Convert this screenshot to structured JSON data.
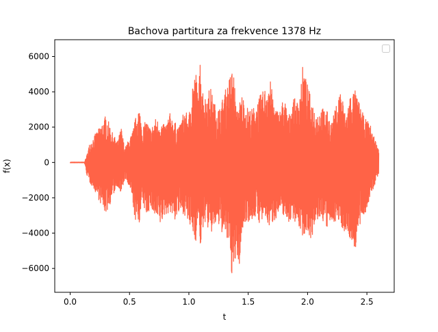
{
  "chart_data": {
    "type": "line",
    "title": "Bachova partitura za frekvence 1378 Hz",
    "xlabel": "t",
    "ylabel": "f(x)",
    "xlim": [
      -0.13,
      2.73
    ],
    "ylim": [
      -7350,
      6950
    ],
    "x_ticks": [
      0.0,
      0.5,
      1.0,
      1.5,
      2.0,
      2.5
    ],
    "x_tick_labels": [
      "0.0",
      "0.5",
      "1.0",
      "1.5",
      "2.0",
      "2.5"
    ],
    "y_ticks": [
      -6000,
      -4000,
      -2000,
      0,
      2000,
      4000,
      6000
    ],
    "y_tick_labels": [
      "−6000",
      "−4000",
      "−2000",
      "0",
      "2000",
      "4000",
      "6000"
    ],
    "grid": false,
    "legend_placement": "top-right",
    "series": [
      {
        "color": "#ff6347",
        "envelope": {
          "t": [
            0.0,
            0.12,
            0.14,
            0.16,
            0.2,
            0.24,
            0.28,
            0.3,
            0.33,
            0.36,
            0.4,
            0.43,
            0.46,
            0.5,
            0.52,
            0.55,
            0.58,
            0.61,
            0.64,
            0.68,
            0.72,
            0.76,
            0.8,
            0.84,
            0.88,
            0.92,
            0.96,
            1.0,
            1.03,
            1.06,
            1.08,
            1.1,
            1.12,
            1.14,
            1.18,
            1.22,
            1.26,
            1.3,
            1.33,
            1.36,
            1.38,
            1.4,
            1.42,
            1.45,
            1.48,
            1.52,
            1.56,
            1.6,
            1.64,
            1.68,
            1.72,
            1.76,
            1.8,
            1.84,
            1.88,
            1.92,
            1.96,
            2.0,
            2.04,
            2.08,
            2.12,
            2.16,
            2.2,
            2.24,
            2.28,
            2.32,
            2.36,
            2.4,
            2.44,
            2.48,
            2.52,
            2.56,
            2.6
          ],
          "upper": [
            20,
            20,
            400,
            1000,
            1500,
            1900,
            2400,
            2700,
            2200,
            1600,
            1200,
            2000,
            800,
            1400,
            1600,
            2500,
            3200,
            2000,
            2400,
            1900,
            2500,
            2300,
            2100,
            2800,
            2300,
            2000,
            3000,
            2600,
            4700,
            5100,
            3800,
            6350,
            4000,
            3700,
            4300,
            3300,
            3100,
            4000,
            4500,
            5300,
            5100,
            2800,
            3300,
            3900,
            3200,
            3000,
            3200,
            3800,
            4200,
            4900,
            3300,
            2800,
            3800,
            2600,
            3700,
            3400,
            5500,
            4400,
            3400,
            2800,
            3100,
            3000,
            2200,
            3200,
            4300,
            2600,
            3900,
            4100,
            3300,
            2500,
            2300,
            1500,
            700
          ],
          "lower": [
            -20,
            -20,
            -700,
            -1100,
            -1500,
            -2100,
            -2700,
            -2900,
            -2500,
            -1900,
            -1300,
            -1900,
            -900,
            -1500,
            -2000,
            -3400,
            -3500,
            -2300,
            -3000,
            -2600,
            -3300,
            -3600,
            -3000,
            -2800,
            -3300,
            -2900,
            -2900,
            -3600,
            -4000,
            -4500,
            -3000,
            -5100,
            -3900,
            -3300,
            -4200,
            -3600,
            -3700,
            -4300,
            -4600,
            -6300,
            -6800,
            -5000,
            -6300,
            -4000,
            -3300,
            -3400,
            -3100,
            -3500,
            -3200,
            -3700,
            -3300,
            -2900,
            -3000,
            -3400,
            -3200,
            -3600,
            -4200,
            -3900,
            -4500,
            -3300,
            -3200,
            -3800,
            -3500,
            -3300,
            -3600,
            -4000,
            -4400,
            -5000,
            -3700,
            -3000,
            -2200,
            -1400,
            -600
          ]
        }
      }
    ]
  }
}
